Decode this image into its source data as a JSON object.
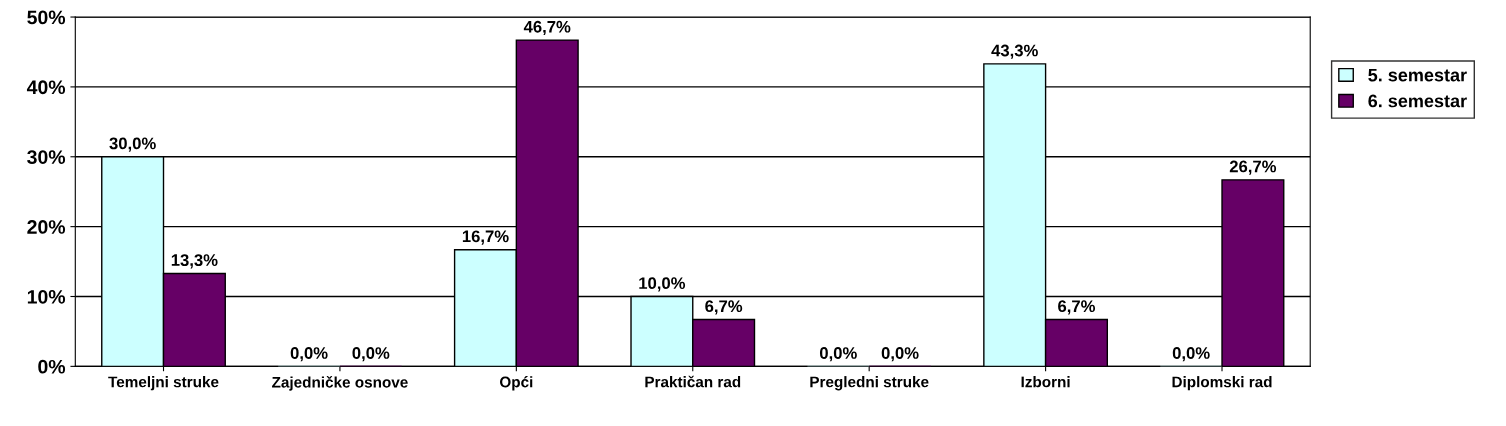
{
  "chart_data": {
    "type": "bar",
    "categories": [
      "Temeljni struke",
      "Zajedničke osnove",
      "Opći",
      "Praktičan rad",
      "Pregledni struke",
      "Izborni",
      "Diplomski rad"
    ],
    "series": [
      {
        "name": "5. semestar",
        "color": "#ccffff",
        "values": [
          30.0,
          0.0,
          16.7,
          10.0,
          0.0,
          43.3,
          0.0
        ],
        "value_labels": [
          "30,0%",
          "0,0%",
          "16,7%",
          "10,0%",
          "0,0%",
          "43,3%",
          "0,0%"
        ]
      },
      {
        "name": "6. semestar",
        "color": "#660066",
        "values": [
          13.3,
          0.0,
          46.7,
          6.7,
          0.0,
          6.7,
          26.7
        ],
        "value_labels": [
          "13,3%",
          "0,0%",
          "46,7%",
          "6,7%",
          "0,0%",
          "6,7%",
          "26,7%"
        ]
      }
    ],
    "ylim": [
      0,
      50
    ],
    "yticks": [
      {
        "value": 0,
        "label": "0%"
      },
      {
        "value": 10,
        "label": "10%"
      },
      {
        "value": 20,
        "label": "20%"
      },
      {
        "value": 30,
        "label": "30%"
      },
      {
        "value": 40,
        "label": "40%"
      },
      {
        "value": 50,
        "label": "50%"
      }
    ],
    "grid": "y",
    "legend": "right"
  }
}
